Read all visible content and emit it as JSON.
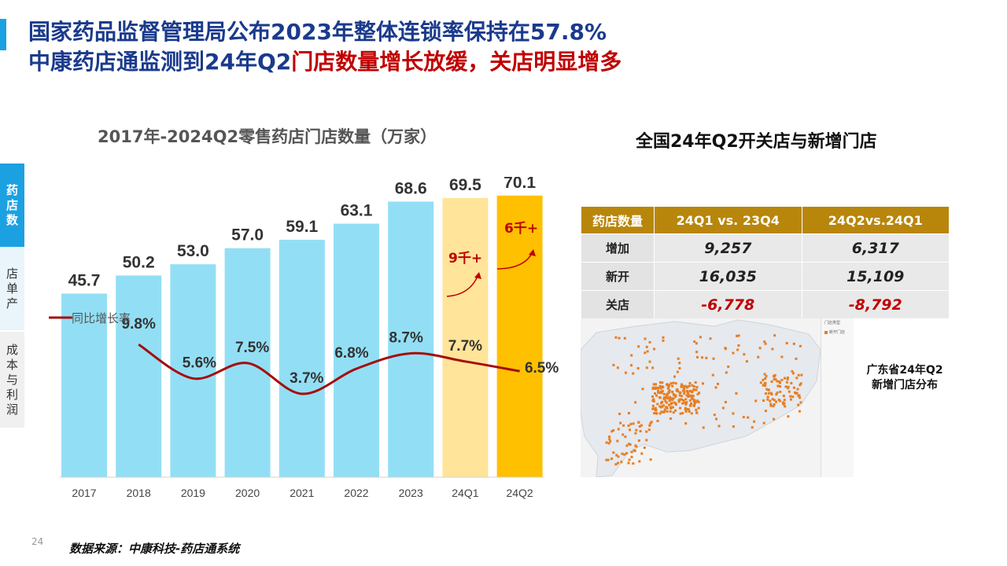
{
  "title": {
    "line1": "国家药品监督管理局公布2023年整体连锁率保持在57.8%",
    "line2_blue": "中康药店通监测到24年Q2",
    "line2_red": "门店数量增长放缓，关店明显增多"
  },
  "side_tabs": [
    "药店数",
    "店单产",
    "成本与利润"
  ],
  "chart_data": {
    "type": "bar",
    "title": "2017年-2024Q2零售药店门店数量（万家）",
    "categories": [
      "2017",
      "2018",
      "2019",
      "2020",
      "2021",
      "2022",
      "2023",
      "24Q1",
      "24Q2"
    ],
    "series": [
      {
        "values": [
          45.7,
          50.2,
          53.0,
          57.0,
          59.1,
          63.1,
          68.6,
          69.5,
          70.1
        ]
      },
      {
        "name": "同比增长率",
        "type": "line",
        "x": [
          "2018",
          "2019",
          "2020",
          "2021",
          "2022",
          "2023",
          "24Q1",
          "24Q2"
        ],
        "values": [
          9.8,
          5.6,
          7.5,
          3.7,
          6.8,
          8.7,
          7.7,
          6.5
        ]
      }
    ],
    "value_labels": [
      "45.7",
      "50.2",
      "53.0",
      "57.0",
      "59.1",
      "63.1",
      "68.6",
      "69.5",
      "70.1"
    ],
    "rate_labels": [
      "9.8%",
      "5.6%",
      "7.5%",
      "3.7%",
      "6.8%",
      "8.7%",
      "7.7%",
      "6.5%"
    ],
    "annotations": [
      "9千+",
      "6千+"
    ],
    "colors": {
      "bar": "#92dff5",
      "bar_q1": "#ffe499",
      "bar_q2": "#ffc000",
      "line": "#a50d0d",
      "annotation": "#c00000"
    }
  },
  "right_title": "全国24年Q2开关店与新增门店",
  "table": {
    "headers": [
      "药店数量",
      "24Q1 vs. 23Q4",
      "24Q2vs.24Q1"
    ],
    "rows": [
      {
        "label": "增加",
        "v1": "9,257",
        "v2": "6,317",
        "negative": false
      },
      {
        "label": "新开",
        "v1": "16,035",
        "v2": "15,109",
        "negative": false
      },
      {
        "label": "关店",
        "v1": "-6,778",
        "v2": "-8,792",
        "negative": true
      }
    ]
  },
  "map": {
    "caption": "广东省24年Q2新增门店分布",
    "dot_color": "#e67e22"
  },
  "page_number": "24",
  "source": "数据来源：中康科技-药店通系统"
}
